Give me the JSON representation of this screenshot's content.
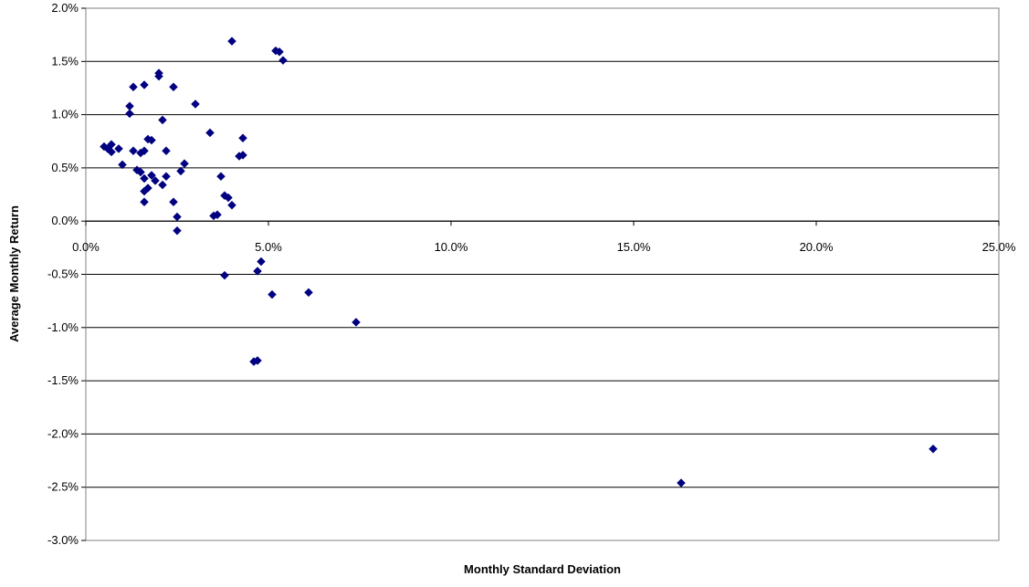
{
  "chart_data": {
    "type": "scatter",
    "title": "",
    "xlabel": "Monthly Standard Deviation",
    "ylabel": "Average Monthly Return",
    "xlim": [
      0.0,
      25.0
    ],
    "ylim": [
      -3.0,
      2.0
    ],
    "x_ticks": [
      "0.0%",
      "5.0%",
      "10.0%",
      "15.0%",
      "20.0%",
      "25.0%"
    ],
    "x_tick_values": [
      0,
      5,
      10,
      15,
      20,
      25
    ],
    "y_ticks": [
      "2.0%",
      "1.5%",
      "1.0%",
      "0.5%",
      "0.0%",
      "-0.5%",
      "-1.0%",
      "-1.5%",
      "-2.0%",
      "-2.5%",
      "-3.0%"
    ],
    "y_tick_values": [
      2.0,
      1.5,
      1.0,
      0.5,
      0.0,
      -0.5,
      -1.0,
      -1.5,
      -2.0,
      -2.5,
      -3.0
    ],
    "grid": "horizontal",
    "legend": "none",
    "marker": "diamond",
    "marker_color": "#000080",
    "points": [
      {
        "x": 0.5,
        "y": 0.7
      },
      {
        "x": 0.6,
        "y": 0.68
      },
      {
        "x": 0.7,
        "y": 0.72
      },
      {
        "x": 0.7,
        "y": 0.65
      },
      {
        "x": 0.9,
        "y": 0.68
      },
      {
        "x": 1.0,
        "y": 0.53
      },
      {
        "x": 1.2,
        "y": 1.01
      },
      {
        "x": 1.2,
        "y": 1.08
      },
      {
        "x": 1.3,
        "y": 1.26
      },
      {
        "x": 1.3,
        "y": 0.66
      },
      {
        "x": 1.4,
        "y": 0.48
      },
      {
        "x": 1.5,
        "y": 0.46
      },
      {
        "x": 1.5,
        "y": 0.64
      },
      {
        "x": 1.6,
        "y": 1.28
      },
      {
        "x": 1.6,
        "y": 0.66
      },
      {
        "x": 1.6,
        "y": 0.4
      },
      {
        "x": 1.6,
        "y": 0.18
      },
      {
        "x": 1.6,
        "y": 0.28
      },
      {
        "x": 1.7,
        "y": 0.31
      },
      {
        "x": 1.7,
        "y": 0.77
      },
      {
        "x": 1.8,
        "y": 0.76
      },
      {
        "x": 1.8,
        "y": 0.43
      },
      {
        "x": 1.9,
        "y": 0.38
      },
      {
        "x": 2.0,
        "y": 1.39
      },
      {
        "x": 2.0,
        "y": 1.36
      },
      {
        "x": 2.1,
        "y": 0.95
      },
      {
        "x": 2.1,
        "y": 0.34
      },
      {
        "x": 2.2,
        "y": 0.42
      },
      {
        "x": 2.2,
        "y": 0.66
      },
      {
        "x": 2.4,
        "y": 1.26
      },
      {
        "x": 2.4,
        "y": 0.18
      },
      {
        "x": 2.5,
        "y": 0.04
      },
      {
        "x": 2.5,
        "y": -0.09
      },
      {
        "x": 2.6,
        "y": 0.47
      },
      {
        "x": 2.7,
        "y": 0.54
      },
      {
        "x": 3.0,
        "y": 1.1
      },
      {
        "x": 3.4,
        "y": 0.83
      },
      {
        "x": 3.5,
        "y": 0.05
      },
      {
        "x": 3.6,
        "y": 0.06
      },
      {
        "x": 3.7,
        "y": 0.42
      },
      {
        "x": 3.8,
        "y": 0.24
      },
      {
        "x": 3.8,
        "y": -0.51
      },
      {
        "x": 3.9,
        "y": 0.22
      },
      {
        "x": 4.0,
        "y": 1.69
      },
      {
        "x": 4.0,
        "y": 0.15
      },
      {
        "x": 4.2,
        "y": 0.61
      },
      {
        "x": 4.3,
        "y": 0.62
      },
      {
        "x": 4.3,
        "y": 0.78
      },
      {
        "x": 4.6,
        "y": -1.32
      },
      {
        "x": 4.7,
        "y": -1.31
      },
      {
        "x": 4.7,
        "y": -0.47
      },
      {
        "x": 4.8,
        "y": -0.38
      },
      {
        "x": 5.1,
        "y": -0.69
      },
      {
        "x": 5.2,
        "y": 1.6
      },
      {
        "x": 5.3,
        "y": 1.59
      },
      {
        "x": 5.4,
        "y": 1.51
      },
      {
        "x": 6.1,
        "y": -0.67
      },
      {
        "x": 7.4,
        "y": -0.95
      },
      {
        "x": 16.3,
        "y": -2.46
      },
      {
        "x": 23.2,
        "y": -2.14
      }
    ]
  }
}
